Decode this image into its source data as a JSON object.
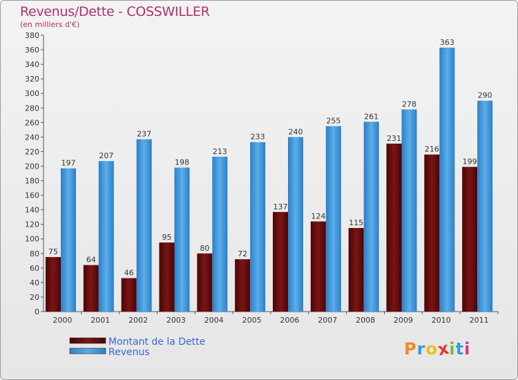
{
  "header": {
    "title": "Revenus/Dette - COSSWILLER",
    "subtitle": "(en milliers d'€)"
  },
  "logo": {
    "text": "Proxiti",
    "colors": [
      "#f08a1c",
      "#2aa1d6",
      "#e8c21a",
      "#e2362b",
      "#7ab648",
      "#2aa1d6",
      "#d63384"
    ]
  },
  "colors": {
    "dette": "#6b0d0d",
    "revenus": "#3f9ae0",
    "title": "#b0306a",
    "legend_text": "#3a66d8"
  },
  "chart_data": {
    "type": "bar",
    "title": "Revenus/Dette - COSSWILLER",
    "ylabel": "(en milliers d'€)",
    "xlabel": "",
    "categories": [
      "2000",
      "2001",
      "2002",
      "2003",
      "2004",
      "2005",
      "2006",
      "2007",
      "2008",
      "2009",
      "2010",
      "2011"
    ],
    "series": [
      {
        "name": "Montant de la Dette",
        "values": [
          75,
          64,
          46,
          95,
          80,
          72,
          137,
          124,
          115,
          231,
          216,
          199
        ]
      },
      {
        "name": "Revenus",
        "values": [
          197,
          207,
          237,
          198,
          213,
          233,
          240,
          255,
          261,
          278,
          363,
          290
        ]
      }
    ],
    "ylim": [
      0,
      380
    ],
    "ytick_step": 20,
    "grid": false,
    "legend_position": "bottom-left"
  }
}
